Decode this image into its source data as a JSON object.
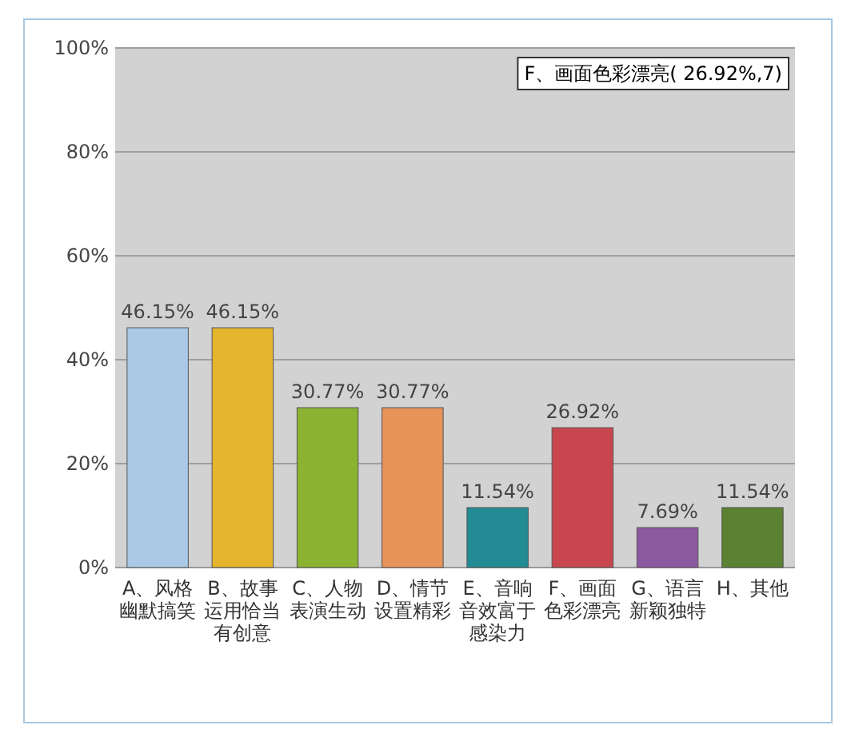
{
  "chart_data": {
    "type": "bar",
    "categories": [
      "A、风格幽默搞笑",
      "B、故事运用恰当有创意",
      "C、人物表演生动",
      "D、情节设置精彩",
      "E、音响音效富于感染力",
      "F、画面色彩漂亮",
      "G、语言新颖独特",
      "H、其他"
    ],
    "values": [
      46.15,
      46.15,
      30.77,
      30.77,
      11.54,
      26.92,
      7.69,
      11.54
    ],
    "colors": [
      "#a9c9e6",
      "#e6b52e",
      "#8cb232",
      "#e8935a",
      "#238b93",
      "#c8474f",
      "#8c5aa0",
      "#5b8232"
    ],
    "value_labels": [
      "46.15%",
      "46.15%",
      "30.77%",
      "30.77%",
      "11.54%",
      "26.92%",
      "7.69%",
      "11.54%"
    ],
    "ylim": [
      0,
      100
    ],
    "yticks": [
      {
        "value": 0,
        "label": "0%"
      },
      {
        "value": 20,
        "label": "20%"
      },
      {
        "value": 40,
        "label": "40%"
      },
      {
        "value": 60,
        "label": "60%"
      },
      {
        "value": 80,
        "label": "80%"
      },
      {
        "value": 100,
        "label": "100%"
      }
    ],
    "grid": "y",
    "annotations": [
      "F、画面色彩漂亮( 26.92%,7)"
    ]
  }
}
